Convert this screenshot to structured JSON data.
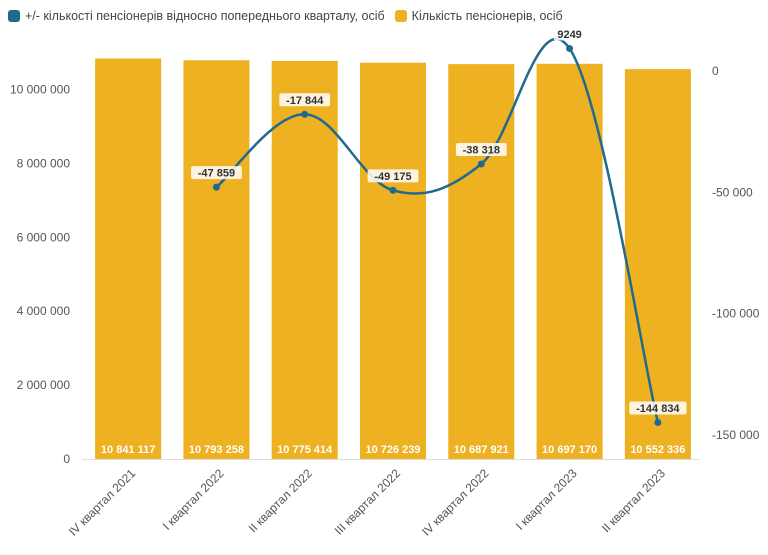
{
  "legend": {
    "line_label": "+/- кількості пенсіонерів відносно попереднього кварталу, осіб",
    "bar_label": "Кількість пенсіонерів, осіб"
  },
  "colors": {
    "bar": "#EDB121",
    "line": "#1F6A8E",
    "axis_text": "#555555",
    "grid": "#DDDDDD"
  },
  "chart_data": {
    "type": "bar",
    "categories": [
      "IV квартал 2021",
      "I квартал 2022",
      "II квартал 2022",
      "III квартал 2022",
      "IV квартал 2022",
      "I квартал 2023",
      "II квартал 2023"
    ],
    "series": [
      {
        "name": "Кількість пенсіонерів, осіб",
        "type": "bar",
        "axis": "left",
        "values": [
          10841117,
          10793258,
          10775414,
          10726239,
          10687921,
          10697170,
          10552336
        ],
        "labels": [
          "10 841 117",
          "10 793 258",
          "10 775 414",
          "10 726 239",
          "10 687 921",
          "10 697 170",
          "10 552 336"
        ]
      },
      {
        "name": "+/- кількості пенсіонерів відносно попереднього кварталу, осіб",
        "type": "line",
        "axis": "right",
        "values": [
          null,
          -47859,
          -17844,
          -49175,
          -38318,
          9249,
          -144834
        ],
        "labels": [
          "",
          "-47 859",
          "-17 844",
          "-49 175",
          "-38 318",
          "9249",
          "-144 834"
        ]
      }
    ],
    "left_axis": {
      "min": 0,
      "max": 11000000,
      "ticks": [
        0,
        2000000,
        4000000,
        6000000,
        8000000,
        10000000
      ],
      "tick_labels": [
        "0",
        "2 000 000",
        "4 000 000",
        "6 000 000",
        "8 000 000",
        "10 000 000"
      ]
    },
    "right_axis": {
      "min": -155000,
      "max": 5000,
      "ticks": [
        0,
        -50000,
        -100000,
        -150000
      ],
      "tick_labels": [
        "0",
        "-50 000",
        "-100 000",
        "-150 000"
      ]
    },
    "legend_position": "top-left"
  }
}
